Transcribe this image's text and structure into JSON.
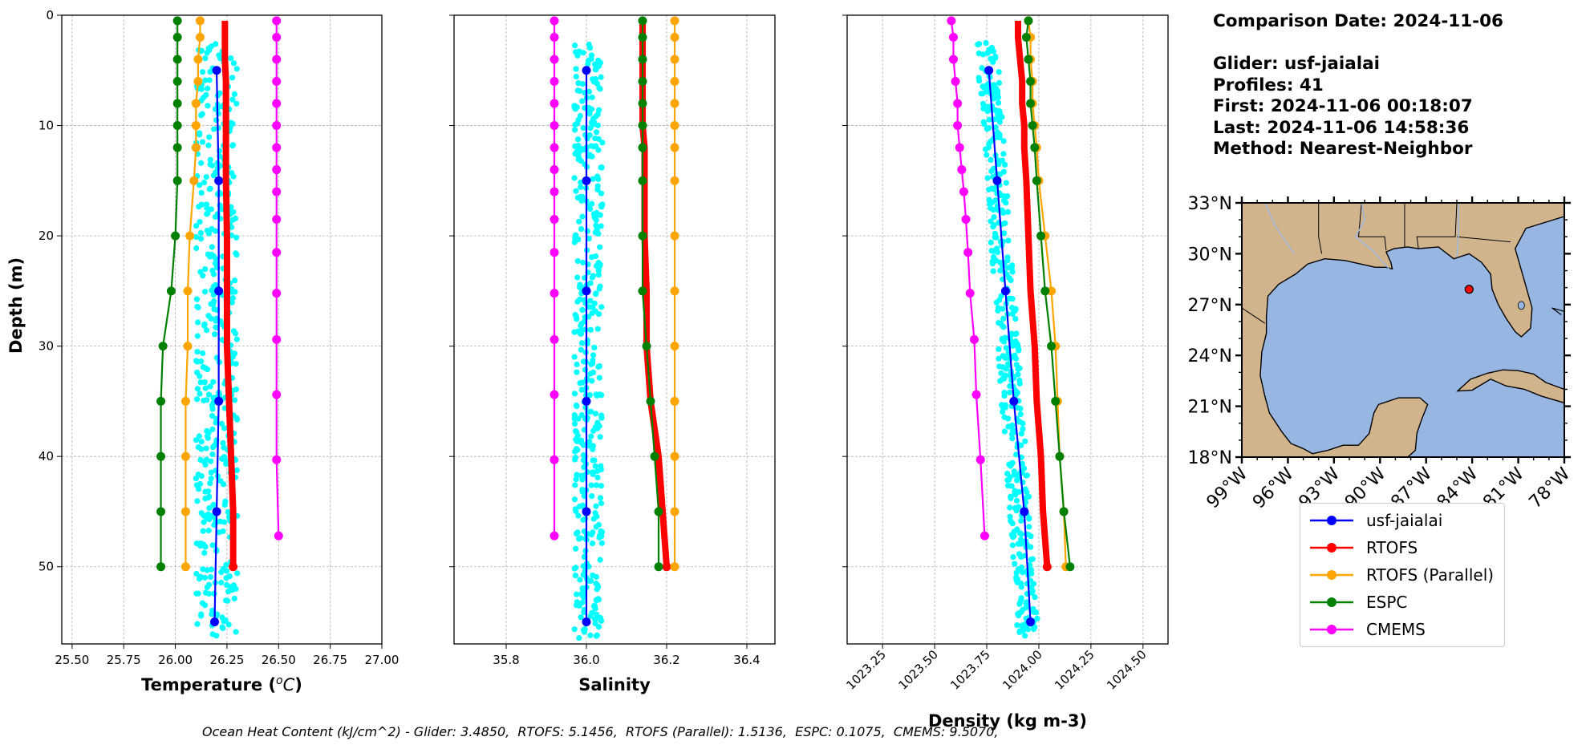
{
  "info": {
    "comparison_date": "Comparison Date: 2024-11-06",
    "glider": "Glider: usf-jaialai",
    "profiles": "Profiles: 41",
    "first": "First: 2024-11-06 00:18:07",
    "last": "Last: 2024-11-06 14:58:36",
    "method": "Method: Nearest-Neighbor"
  },
  "footer": {
    "ohc": "Ocean Heat Content (kJ/cm^2) - Glider: 3.4850,  RTOFS: 5.1456,  RTOFS (Parallel): 1.5136,  ESPC: 0.1075,  CMEMS: 9.5070,"
  },
  "legend": [
    {
      "name": "usf-jaialai",
      "color": "#0000ff"
    },
    {
      "name": "RTOFS",
      "color": "#ff0000"
    },
    {
      "name": "RTOFS (Parallel)",
      "color": "#ffa500"
    },
    {
      "name": "ESPC",
      "color": "#008000"
    },
    {
      "name": "CMEMS",
      "color": "#ff00ff"
    }
  ],
  "colors": {
    "glider_raw": "#00ffff",
    "land": "#d2b48c",
    "ocean": "#98b6e2"
  },
  "chart_data": [
    {
      "type": "line",
      "xlabel": "Temperature ($^{o}C$)",
      "ylabel": "Depth (m)",
      "xlim": [
        25.45,
        27.0
      ],
      "ylim": [
        57,
        0
      ],
      "xticks": [
        25.5,
        25.75,
        26.0,
        26.25,
        26.5,
        26.75,
        27.0
      ],
      "xtick_labels": [
        "25.50",
        "25.75",
        "26.00",
        "26.25",
        "26.50",
        "26.75",
        "27.00"
      ],
      "yticks": [
        0,
        10,
        20,
        30,
        40,
        50
      ],
      "grid": true,
      "raw_cloud": {
        "series": "usf-jaialai (raw)",
        "x_range": [
          26.1,
          26.3
        ],
        "depth_range": [
          2.5,
          56.5
        ]
      },
      "series": [
        {
          "name": "usf-jaialai",
          "depth": [
            5,
            15,
            25,
            35,
            45,
            55
          ],
          "values": [
            26.2,
            26.21,
            26.21,
            26.21,
            26.2,
            26.19
          ]
        },
        {
          "name": "RTOFS",
          "depth": [
            0.5,
            2,
            4,
            6,
            8,
            10,
            12,
            15,
            20,
            25,
            30,
            35,
            40,
            45,
            50
          ],
          "values": [
            26.24,
            26.24,
            26.24,
            26.245,
            26.245,
            26.245,
            26.245,
            26.245,
            26.25,
            26.25,
            26.25,
            26.26,
            26.27,
            26.28,
            26.28
          ],
          "markers": false
        },
        {
          "name": "RTOFS (Parallel)",
          "depth": [
            0.5,
            2,
            4,
            6,
            8,
            10,
            12,
            15,
            20,
            25,
            30,
            35,
            40,
            45,
            50
          ],
          "values": [
            26.12,
            26.12,
            26.11,
            26.11,
            26.1,
            26.1,
            26.1,
            26.09,
            26.07,
            26.06,
            26.06,
            26.05,
            26.05,
            26.05,
            26.05
          ]
        },
        {
          "name": "ESPC",
          "depth": [
            0.5,
            2,
            4,
            6,
            8,
            10,
            12,
            15,
            20,
            25,
            30,
            35,
            40,
            45,
            50
          ],
          "values": [
            26.01,
            26.01,
            26.01,
            26.01,
            26.01,
            26.01,
            26.01,
            26.01,
            26.0,
            25.98,
            25.94,
            25.93,
            25.93,
            25.93,
            25.93
          ]
        },
        {
          "name": "CMEMS",
          "depth": [
            0.5,
            2,
            4,
            6,
            8,
            10,
            12,
            14,
            16,
            18.5,
            21.5,
            25.2,
            29.4,
            34.4,
            40.3,
            47.2
          ],
          "values": [
            26.49,
            26.49,
            26.49,
            26.49,
            26.49,
            26.49,
            26.49,
            26.49,
            26.49,
            26.49,
            26.49,
            26.49,
            26.49,
            26.49,
            26.49,
            26.5
          ]
        }
      ]
    },
    {
      "type": "line",
      "xlabel": "Salinity",
      "xlim": [
        35.67,
        36.47
      ],
      "ylim": [
        57,
        0
      ],
      "xticks": [
        35.8,
        36.0,
        36.2,
        36.4
      ],
      "xtick_labels": [
        "35.8",
        "36.0",
        "36.2",
        "36.4"
      ],
      "grid": true,
      "raw_cloud": {
        "series": "usf-jaialai (raw)",
        "x_range": [
          35.97,
          36.04
        ],
        "depth_range": [
          2.5,
          56.5
        ]
      },
      "series": [
        {
          "name": "usf-jaialai",
          "depth": [
            5,
            15,
            25,
            35,
            45,
            55
          ],
          "values": [
            36.0,
            36.0,
            36.0,
            36.0,
            36.0,
            36.0
          ]
        },
        {
          "name": "RTOFS",
          "depth": [
            0.5,
            2,
            4,
            6,
            8,
            10,
            12,
            15,
            20,
            25,
            30,
            35,
            40,
            45,
            50
          ],
          "values": [
            36.14,
            36.14,
            36.14,
            36.14,
            36.14,
            36.14,
            36.145,
            36.145,
            36.145,
            36.15,
            36.15,
            36.16,
            36.18,
            36.19,
            36.2
          ],
          "markers": false
        },
        {
          "name": "RTOFS (Parallel)",
          "depth": [
            0.5,
            2,
            4,
            6,
            8,
            10,
            12,
            15,
            20,
            25,
            30,
            35,
            40,
            45,
            50
          ],
          "values": [
            36.22,
            36.22,
            36.22,
            36.22,
            36.22,
            36.22,
            36.22,
            36.22,
            36.22,
            36.22,
            36.22,
            36.22,
            36.22,
            36.22,
            36.22
          ]
        },
        {
          "name": "ESPC",
          "depth": [
            0.5,
            2,
            4,
            6,
            8,
            10,
            12,
            15,
            20,
            25,
            30,
            35,
            40,
            45,
            50
          ],
          "values": [
            36.14,
            36.14,
            36.14,
            36.14,
            36.14,
            36.14,
            36.14,
            36.14,
            36.14,
            36.14,
            36.15,
            36.16,
            36.17,
            36.18,
            36.18
          ]
        },
        {
          "name": "CMEMS",
          "depth": [
            0.5,
            2,
            4,
            6,
            8,
            10,
            12,
            14,
            16,
            18.5,
            21.5,
            25.2,
            29.4,
            34.4,
            40.3,
            47.2
          ],
          "values": [
            35.92,
            35.92,
            35.92,
            35.92,
            35.92,
            35.92,
            35.92,
            35.92,
            35.92,
            35.92,
            35.92,
            35.92,
            35.92,
            35.92,
            35.92,
            35.92
          ]
        }
      ]
    },
    {
      "type": "line",
      "xlabel": "Density (kg m-3)",
      "xlim": [
        1023.08,
        1024.62
      ],
      "ylim": [
        57,
        0
      ],
      "xticks": [
        1023.25,
        1023.5,
        1023.75,
        1024.0,
        1024.25,
        1024.5
      ],
      "xtick_labels": [
        "1023.25",
        "1023.50",
        "1023.75",
        "1024.00",
        "1024.25",
        "1024.50"
      ],
      "grid": true,
      "raw_cloud": {
        "series": "usf-jaialai (raw)",
        "depth_range": [
          2.5,
          56.5
        ],
        "x_top": [
          1023.7,
          1023.8
        ],
        "x_bottom": [
          1023.9,
          1024.0
        ]
      },
      "series": [
        {
          "name": "usf-jaialai",
          "depth": [
            5,
            15,
            25,
            35,
            45,
            55
          ],
          "values": [
            1023.76,
            1023.8,
            1023.84,
            1023.88,
            1023.93,
            1023.96
          ]
        },
        {
          "name": "RTOFS",
          "depth": [
            0.5,
            2,
            4,
            6,
            8,
            10,
            12,
            15,
            20,
            25,
            30,
            35,
            40,
            45,
            50
          ],
          "values": [
            1023.9,
            1023.9,
            1023.91,
            1023.92,
            1023.92,
            1023.93,
            1023.93,
            1023.94,
            1023.95,
            1023.96,
            1023.98,
            1023.99,
            1024.01,
            1024.02,
            1024.04
          ],
          "markers": false
        },
        {
          "name": "RTOFS (Parallel)",
          "depth": [
            0.5,
            2,
            4,
            6,
            8,
            10,
            12,
            15,
            20,
            25,
            30,
            35,
            40,
            45,
            50
          ],
          "values": [
            1023.95,
            1023.96,
            1023.96,
            1023.97,
            1023.97,
            1023.98,
            1023.99,
            1024.0,
            1024.03,
            1024.06,
            1024.08,
            1024.09,
            1024.1,
            1024.12,
            1024.13
          ]
        },
        {
          "name": "ESPC",
          "depth": [
            0.5,
            2,
            4,
            6,
            8,
            10,
            12,
            15,
            20,
            25,
            30,
            35,
            40,
            45,
            50
          ],
          "values": [
            1023.95,
            1023.94,
            1023.95,
            1023.96,
            1023.96,
            1023.97,
            1023.98,
            1023.99,
            1024.01,
            1024.03,
            1024.06,
            1024.08,
            1024.1,
            1024.12,
            1024.15
          ]
        },
        {
          "name": "CMEMS",
          "depth": [
            0.5,
            2,
            4,
            6,
            8,
            10,
            12,
            14,
            16,
            18.5,
            21.5,
            25.2,
            29.4,
            34.4,
            40.3,
            47.2
          ],
          "values": [
            1023.58,
            1023.59,
            1023.59,
            1023.6,
            1023.61,
            1023.61,
            1023.62,
            1023.63,
            1023.64,
            1023.65,
            1023.66,
            1023.67,
            1023.69,
            1023.7,
            1023.72,
            1023.74
          ]
        }
      ]
    }
  ],
  "map": {
    "lat_ticks": [
      "33°N",
      "30°N",
      "27°N",
      "24°N",
      "21°N",
      "18°N"
    ],
    "lon_ticks": [
      "99°W",
      "96°W",
      "93°W",
      "90°W",
      "87°W",
      "84°W",
      "81°W",
      "78°W"
    ],
    "extent": {
      "lon": [
        -99,
        -78
      ],
      "lat": [
        18,
        33
      ]
    },
    "glider_position": {
      "lon": -84.2,
      "lat": 27.9
    }
  }
}
